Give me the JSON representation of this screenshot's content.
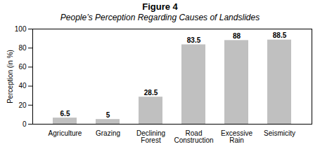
{
  "chart_data": {
    "type": "bar",
    "title": "Figure  4",
    "subtitle": "People’s Perception Regarding Causes of Landslides",
    "categories": [
      "Agriculture",
      "Grazing",
      "Declining\nForest",
      "Road\nConstruction",
      "Excessive\nRain",
      "Seismicity"
    ],
    "values": [
      6.5,
      5,
      28.5,
      83.5,
      88,
      88.5
    ],
    "color": "#c0c0c0",
    "ylabel": "Perception (in %)",
    "ylim": [
      0,
      100
    ],
    "yticks": [
      0,
      20,
      40,
      60,
      80,
      100
    ],
    "grid": false,
    "data_labels": true
  }
}
